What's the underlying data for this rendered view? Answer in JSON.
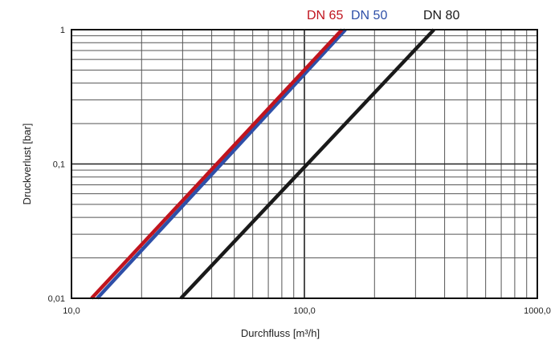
{
  "chart_data": {
    "type": "line",
    "xlabel": "Durchfluss [m³/h]",
    "ylabel": "Druckverlust [bar]",
    "xscale": "log",
    "yscale": "log",
    "xlim": [
      10,
      1000
    ],
    "ylim": [
      0.01,
      1
    ],
    "grid": true,
    "legend_position": "top",
    "x_tick_labels": [
      {
        "value": 10,
        "label": "10,0"
      },
      {
        "value": 100,
        "label": "100,0"
      },
      {
        "value": 1000,
        "label": "1000,0"
      }
    ],
    "y_tick_labels": [
      {
        "value": 1,
        "label": "1"
      },
      {
        "value": 0.1,
        "label": "0,1"
      },
      {
        "value": 0.01,
        "label": "0,01"
      }
    ],
    "series": [
      {
        "name": "DN 65",
        "color": "#c0141e",
        "x": [
          12.2,
          145
        ],
        "y": [
          0.01,
          1
        ]
      },
      {
        "name": "DN 50",
        "color": "#2e4fa8",
        "x": [
          12.9,
          150
        ],
        "y": [
          0.01,
          1
        ]
      },
      {
        "name": "DN 80",
        "color": "#1a1a1a",
        "x": [
          29.5,
          360
        ],
        "y": [
          0.01,
          1
        ]
      }
    ]
  }
}
